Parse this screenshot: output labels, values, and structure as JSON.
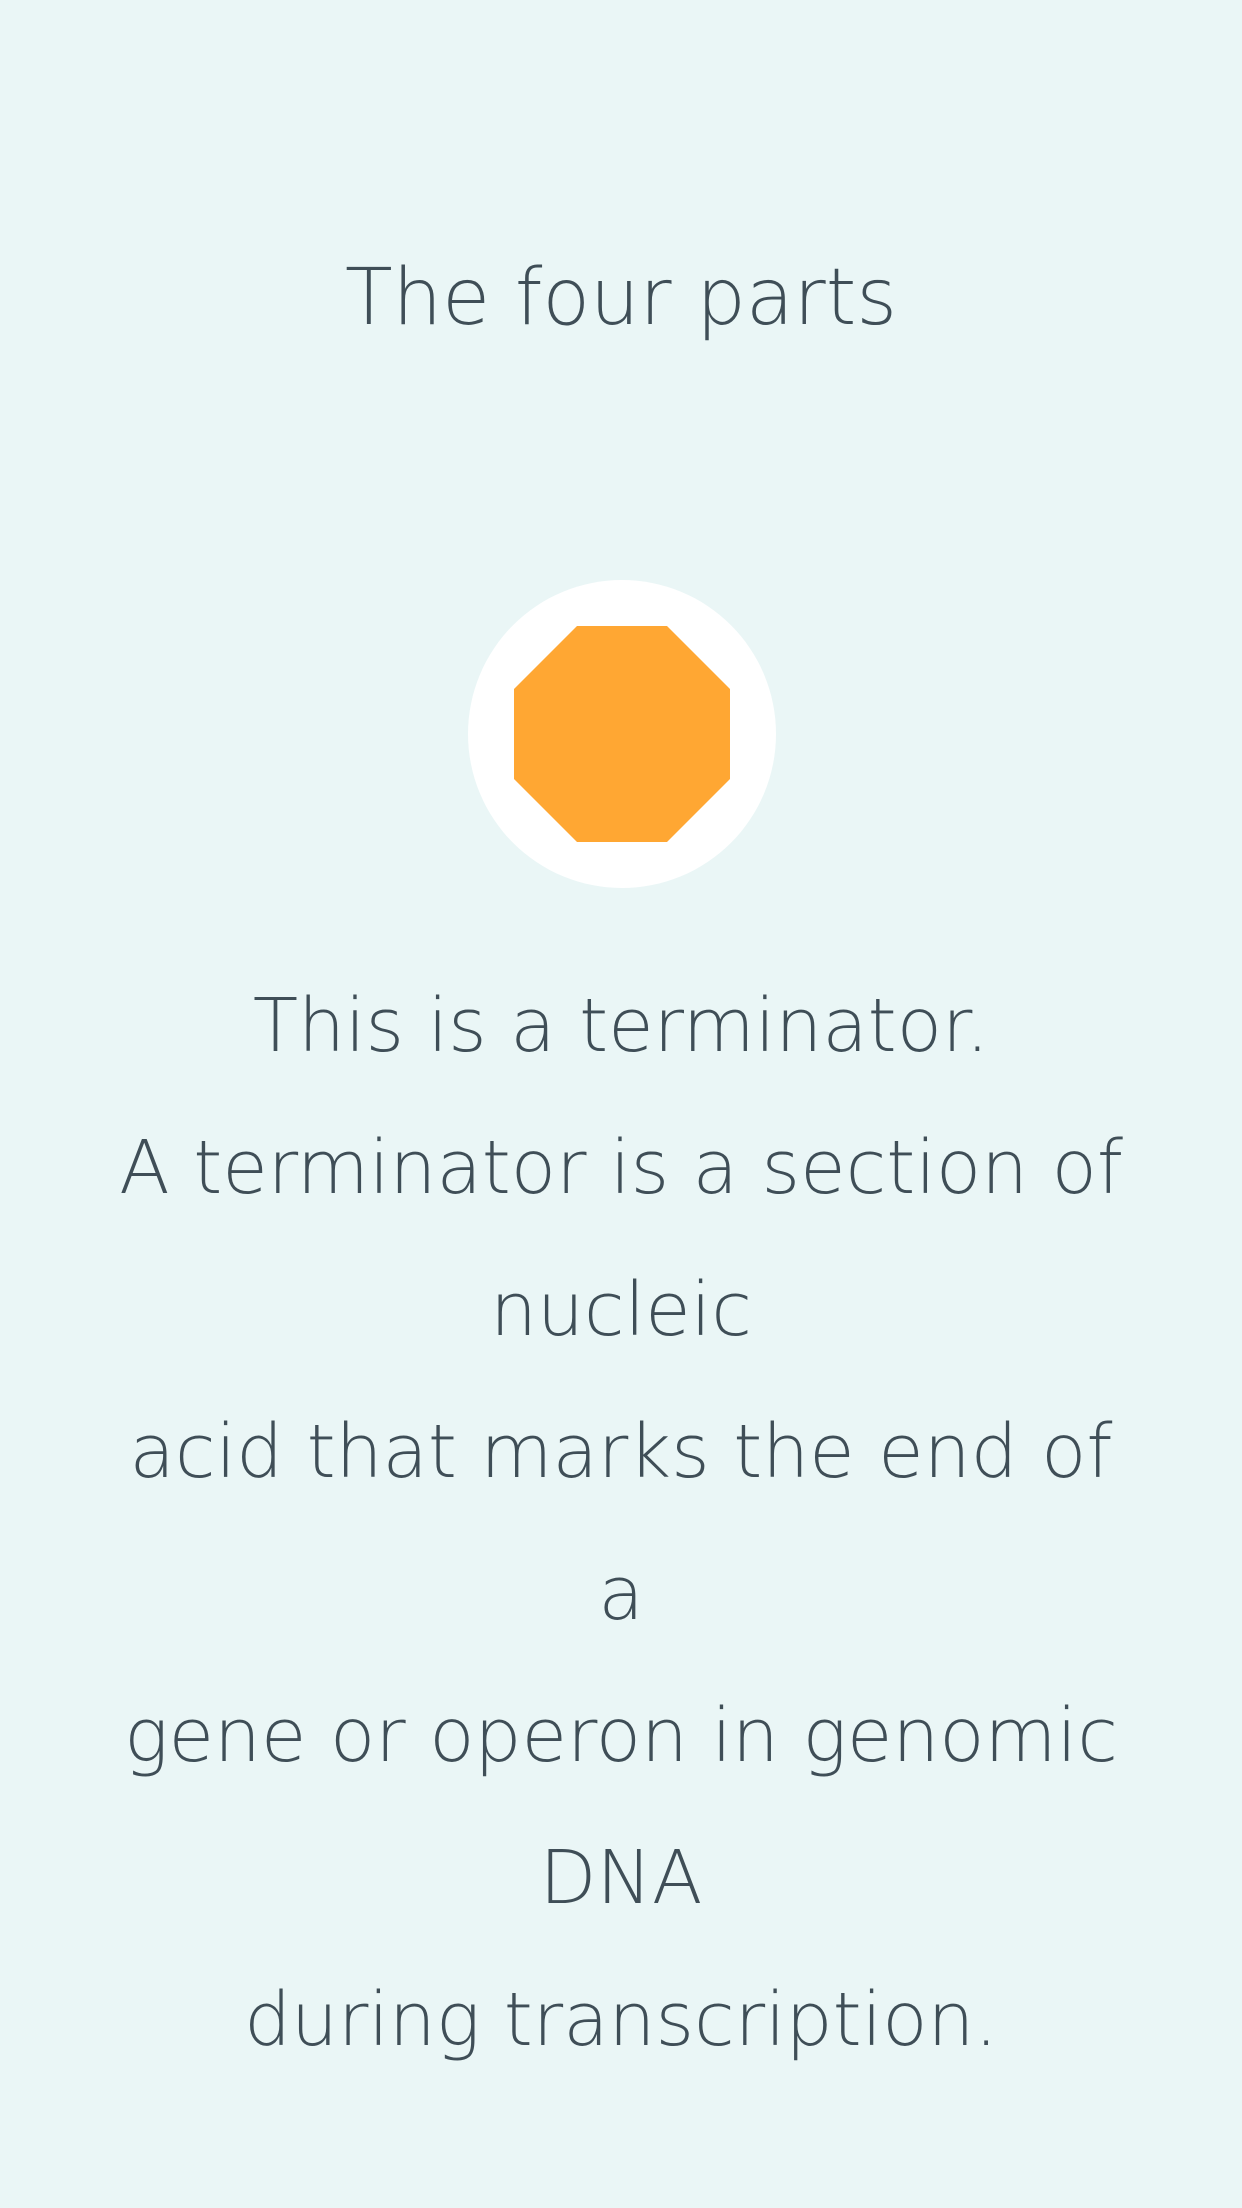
{
  "header": {
    "title": "The four parts"
  },
  "part": {
    "icon": "octagon-stop-icon",
    "icon_color": "#FFA733",
    "badge_color": "#FFFFFF",
    "heading": "This is a terminator.",
    "body_lines": [
      "A terminator is a section of nucleic",
      "acid that marks the end of a",
      "gene or operon in genomic DNA",
      "during transcription."
    ]
  },
  "colors": {
    "background": "#EAF6F6",
    "text": "#3F4E57"
  }
}
